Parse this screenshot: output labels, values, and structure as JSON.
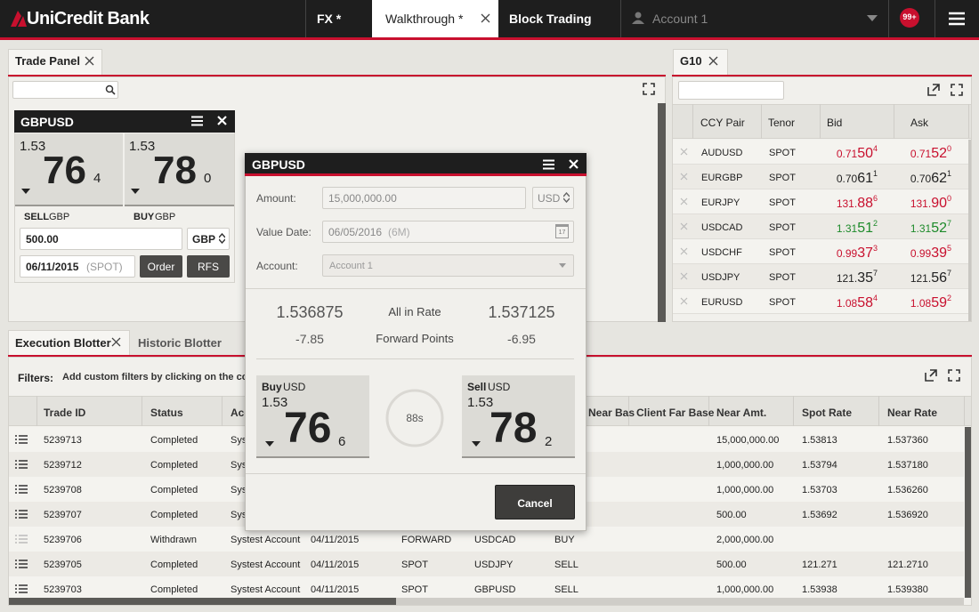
{
  "nav": {
    "logo": "UniCredit Bank",
    "tabs": [
      "FX *",
      "Walkthrough *",
      "Block Trading"
    ],
    "account": "Account 1",
    "badge": "99+"
  },
  "trade_panel": {
    "tab": "Trade Panel",
    "tile": {
      "pair": "GBPUSD",
      "sell": {
        "big": "1.53",
        "pips": "76",
        "frac": "4"
      },
      "buy": {
        "big": "1.53",
        "pips": "78",
        "frac": "0"
      },
      "sell_label": "SELL",
      "sell_ccy": "GBP",
      "buy_label": "BUY",
      "buy_ccy": "GBP",
      "amount": "500.00",
      "ccy": "GBP",
      "date": "06/11/2015",
      "tenor": "(SPOT)",
      "order": "Order",
      "rfs": "RFS"
    }
  },
  "g10": {
    "tab": "G10",
    "headers": [
      "CCY Pair",
      "Tenor",
      "Bid",
      "Ask"
    ],
    "rows": [
      {
        "pair": "AUDUSD",
        "tenor": "SPOT",
        "bid": [
          "0.71",
          "50",
          "4"
        ],
        "ask": [
          "0.71",
          "52",
          "0"
        ],
        "bid_color": "#c8102e",
        "ask_color": "#c8102e"
      },
      {
        "pair": "EURGBP",
        "tenor": "SPOT",
        "bid": [
          "0.70",
          "61",
          "1"
        ],
        "ask": [
          "0.70",
          "62",
          "1"
        ],
        "bid_color": "#222222",
        "ask_color": "#222222"
      },
      {
        "pair": "EURJPY",
        "tenor": "SPOT",
        "bid": [
          "131.",
          "88",
          "6"
        ],
        "ask": [
          "131.",
          "90",
          "0"
        ],
        "bid_color": "#c8102e",
        "ask_color": "#c8102e"
      },
      {
        "pair": "USDCAD",
        "tenor": "SPOT",
        "bid": [
          "1.31",
          "51",
          "2"
        ],
        "ask": [
          "1.31",
          "52",
          "7"
        ],
        "bid_color": "#1d8a2a",
        "ask_color": "#1d8a2a"
      },
      {
        "pair": "USDCHF",
        "tenor": "SPOT",
        "bid": [
          "0.99",
          "37",
          "3"
        ],
        "ask": [
          "0.99",
          "39",
          "5"
        ],
        "bid_color": "#c8102e",
        "ask_color": "#c8102e"
      },
      {
        "pair": "USDJPY",
        "tenor": "SPOT",
        "bid": [
          "121.",
          "35",
          "7"
        ],
        "ask": [
          "121.",
          "56",
          "7"
        ],
        "bid_color": "#222222",
        "ask_color": "#222222"
      },
      {
        "pair": "EURUSD",
        "tenor": "SPOT",
        "bid": [
          "1.08",
          "58",
          "4"
        ],
        "ask": [
          "1.08",
          "59",
          "2"
        ],
        "bid_color": "#c8102e",
        "ask_color": "#c8102e"
      }
    ]
  },
  "blotter": {
    "tabs": [
      "Execution Blotter",
      "Historic Blotter"
    ],
    "filters_label": "Filters:",
    "filters_hint": "Add custom filters by clicking on the colu",
    "headers": [
      "Trade ID",
      "Status",
      "Acc",
      "Near Bas",
      "Client Far Base",
      "Near Amt.",
      "Spot Rate",
      "Near Rate"
    ],
    "rows": [
      [
        "5239713",
        "Completed",
        "Syst",
        null,
        null,
        null,
        null,
        "15,000,000.00",
        "1.53813",
        "1.537360"
      ],
      [
        "5239712",
        "Completed",
        "Sys",
        null,
        null,
        null,
        null,
        "1,000,000.00",
        "1.53794",
        "1.537180"
      ],
      [
        "5239708",
        "Completed",
        "Sys",
        null,
        null,
        null,
        null,
        "1,000,000.00",
        "1.53703",
        "1.536260"
      ],
      [
        "5239707",
        "Completed",
        "Sys",
        null,
        null,
        null,
        null,
        "500.00",
        "1.53692",
        "1.536920"
      ],
      [
        "5239706",
        "Withdrawn",
        "Systest Account",
        "04/11/2015",
        "FORWARD",
        "USDCAD",
        "BUY",
        "2,000,000.00",
        null,
        null
      ],
      [
        "5239705",
        "Completed",
        "Systest Account",
        "04/11/2015",
        "SPOT",
        "USDJPY",
        "SELL",
        "500.00",
        "121.271",
        "121.2710"
      ],
      [
        "5239703",
        "Completed",
        "Systest Account",
        "04/11/2015",
        "SPOT",
        "GBPUSD",
        "SELL",
        "1,000,000.00",
        "1.53938",
        "1.539380"
      ]
    ]
  },
  "dialog": {
    "title": "GBPUSD",
    "amount_label": "Amount:",
    "amount": "15,000,000.00",
    "ccy": "USD",
    "date_label": "Value Date:",
    "date": "06/05/2016",
    "tenor": "(6M)",
    "calendar_day": "17",
    "account_label": "Account:",
    "account": "Account 1",
    "all_in_bid": "1.536875",
    "all_in_label": "All in Rate",
    "all_in_ask": "1.537125",
    "fwd_bid": "-7.85",
    "fwd_label": "Forward Points",
    "fwd_ask": "-6.95",
    "buy": {
      "label": "Buy",
      "ccy": "USD",
      "big": "1.53",
      "pips": "76",
      "frac": "6"
    },
    "timer": "88s",
    "sell": {
      "label": "Sell",
      "ccy": "USD",
      "big": "1.53",
      "pips": "78",
      "frac": "2"
    },
    "cancel": "Cancel"
  }
}
